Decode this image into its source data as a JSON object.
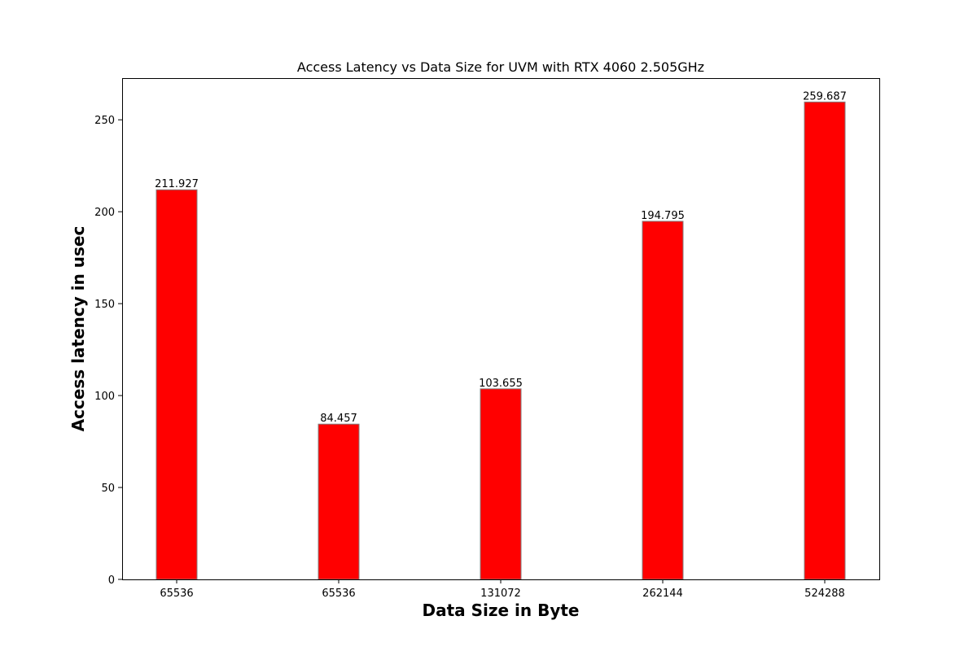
{
  "chart_data": {
    "type": "bar",
    "title": "Access Latency vs Data Size for UVM with RTX 4060 2.505GHz",
    "xlabel": "Data Size in Byte",
    "ylabel": "Access latency in usec",
    "categories": [
      "65536",
      "65536",
      "131072",
      "262144",
      "524288"
    ],
    "values": [
      211.927,
      84.457,
      103.655,
      194.795,
      259.687
    ],
    "data_labels": [
      "211.927",
      "84.457",
      "103.655",
      "194.795",
      "259.687"
    ],
    "ylim": [
      0,
      272.67
    ],
    "yticks": [
      0,
      50,
      100,
      150,
      200,
      250
    ],
    "grid": false,
    "legend": "none",
    "bar_color": "#ff0000",
    "bar_edge_color": "#808080"
  }
}
